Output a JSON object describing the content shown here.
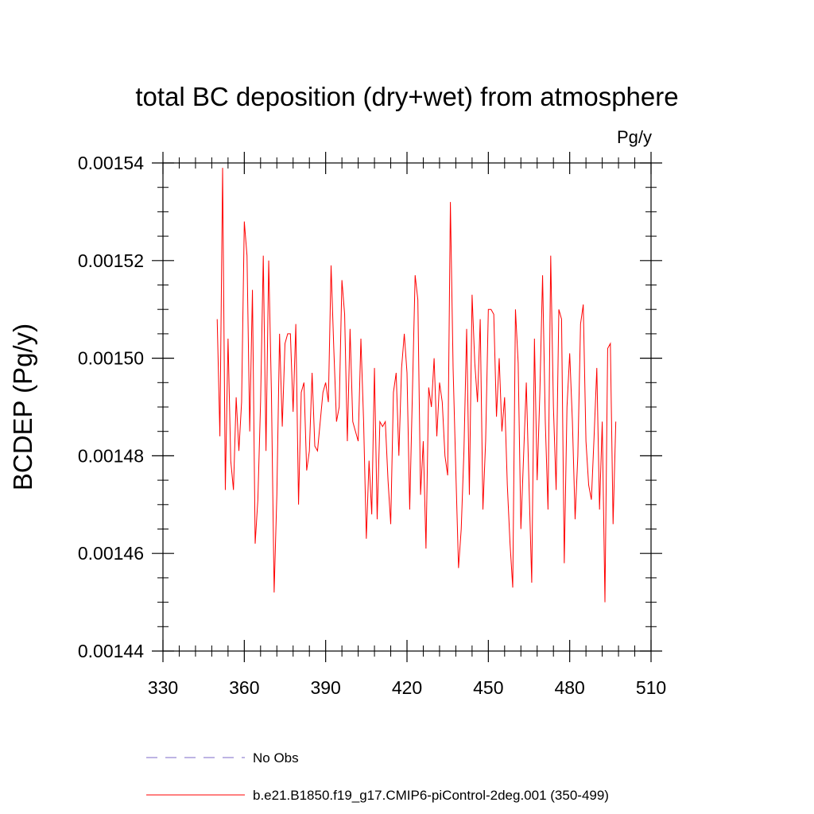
{
  "chart_data": {
    "type": "line",
    "title": "total BC deposition (dry+wet) from atmosphere",
    "units": "Pg/y",
    "ylabel": "BCDEP  (Pg/y)",
    "xlabel": "",
    "xlim": [
      330,
      510
    ],
    "ylim": [
      0.00144,
      0.00154
    ],
    "x_ticks": [
      330,
      360,
      390,
      420,
      450,
      480,
      510
    ],
    "x_tick_labels": [
      "330",
      "360",
      "390",
      "420",
      "450",
      "480",
      "510"
    ],
    "y_ticks": [
      0.00144,
      0.00146,
      0.00148,
      0.0015,
      0.00152,
      0.00154
    ],
    "y_tick_labels": [
      "0.00144",
      "0.00146",
      "0.00148",
      "0.00150",
      "0.00152",
      "0.00154"
    ],
    "grid": false,
    "legend_position": "bottom",
    "series": [
      {
        "name": "No Obs",
        "color": "#7b68c8",
        "dash": "dashed",
        "x": [],
        "values": []
      },
      {
        "name": "b.e21.B1850.f19_g17.CMIP6-piControl-2deg.001 (350-499)",
        "color": "#ff0000",
        "dash": "solid",
        "x_start": 350,
        "x_step": 1,
        "values": [
          0.001508,
          0.001484,
          0.001539,
          0.001473,
          0.001504,
          0.001479,
          0.001473,
          0.001492,
          0.001481,
          0.001491,
          0.001528,
          0.001521,
          0.001485,
          0.001514,
          0.001462,
          0.001471,
          0.001491,
          0.001521,
          0.001481,
          0.00152,
          0.001493,
          0.001452,
          0.001472,
          0.001505,
          0.001486,
          0.001503,
          0.001505,
          0.001505,
          0.001489,
          0.001507,
          0.00147,
          0.001493,
          0.001495,
          0.001477,
          0.001481,
          0.001497,
          0.001482,
          0.001481,
          0.001487,
          0.001493,
          0.001495,
          0.001491,
          0.001519,
          0.001502,
          0.001487,
          0.00149,
          0.001516,
          0.001509,
          0.001483,
          0.001506,
          0.001487,
          0.001485,
          0.001483,
          0.001504,
          0.001487,
          0.001463,
          0.001479,
          0.001468,
          0.001498,
          0.001467,
          0.001487,
          0.001486,
          0.001487,
          0.001475,
          0.001466,
          0.001493,
          0.001497,
          0.00148,
          0.001498,
          0.001505,
          0.001497,
          0.001469,
          0.001493,
          0.001517,
          0.001512,
          0.001472,
          0.001483,
          0.001461,
          0.001494,
          0.00149,
          0.0015,
          0.001484,
          0.001495,
          0.001491,
          0.00148,
          0.001476,
          0.001532,
          0.001498,
          0.001477,
          0.001457,
          0.001465,
          0.001481,
          0.001506,
          0.001472,
          0.001513,
          0.001499,
          0.001491,
          0.001508,
          0.001469,
          0.001483,
          0.00151,
          0.00151,
          0.001509,
          0.001488,
          0.0015,
          0.001485,
          0.001492,
          0.001474,
          0.001462,
          0.001453,
          0.00151,
          0.001499,
          0.001465,
          0.00148,
          0.001495,
          0.001474,
          0.001454,
          0.001504,
          0.001475,
          0.001493,
          0.001517,
          0.001487,
          0.001469,
          0.001521,
          0.00149,
          0.001473,
          0.00151,
          0.001508,
          0.001458,
          0.00149,
          0.001501,
          0.001487,
          0.001467,
          0.00148,
          0.001507,
          0.001511,
          0.001483,
          0.001474,
          0.001471,
          0.001484,
          0.001498,
          0.001469,
          0.001487,
          0.00145,
          0.001502,
          0.001503,
          0.001466,
          0.001487
        ]
      }
    ]
  }
}
